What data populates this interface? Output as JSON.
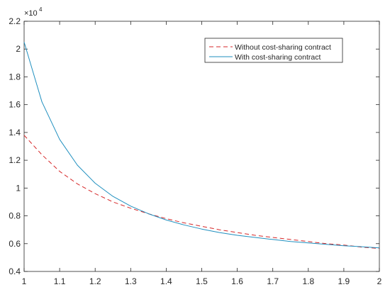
{
  "chart_data": {
    "type": "line",
    "title": "",
    "xlabel": "",
    "ylabel": "",
    "xlim": [
      1,
      2
    ],
    "ylim": [
      0.4,
      2.2
    ],
    "y_exponent_label": "×10^4",
    "x_ticks": [
      "1",
      "1.1",
      "1.2",
      "1.3",
      "1.4",
      "1.5",
      "1.6",
      "1.7",
      "1.8",
      "1.9",
      "2"
    ],
    "y_ticks": [
      "0.4",
      "0.6",
      "0.8",
      "1",
      "1.2",
      "1.4",
      "1.6",
      "1.8",
      "2",
      "2.2"
    ],
    "grid": false,
    "legend_position": "top-right",
    "x": [
      1.0,
      1.05,
      1.1,
      1.15,
      1.2,
      1.25,
      1.3,
      1.35,
      1.4,
      1.45,
      1.5,
      1.55,
      1.6,
      1.65,
      1.7,
      1.75,
      1.8,
      1.85,
      1.9,
      1.95,
      2.0
    ],
    "series": [
      {
        "name": "Without cost-sharing contract",
        "color": "#d62728",
        "style": "dashed",
        "values": [
          1.38,
          1.24,
          1.12,
          1.03,
          0.96,
          0.9,
          0.855,
          0.815,
          0.78,
          0.75,
          0.725,
          0.7,
          0.68,
          0.66,
          0.645,
          0.63,
          0.615,
          0.6,
          0.59,
          0.575,
          0.565
        ]
      },
      {
        "name": "With cost-sharing contract",
        "color": "#1f8fbf",
        "style": "solid",
        "values": [
          2.05,
          1.62,
          1.35,
          1.165,
          1.035,
          0.94,
          0.87,
          0.815,
          0.77,
          0.735,
          0.705,
          0.68,
          0.66,
          0.645,
          0.63,
          0.615,
          0.605,
          0.595,
          0.585,
          0.578,
          0.57
        ]
      }
    ]
  }
}
